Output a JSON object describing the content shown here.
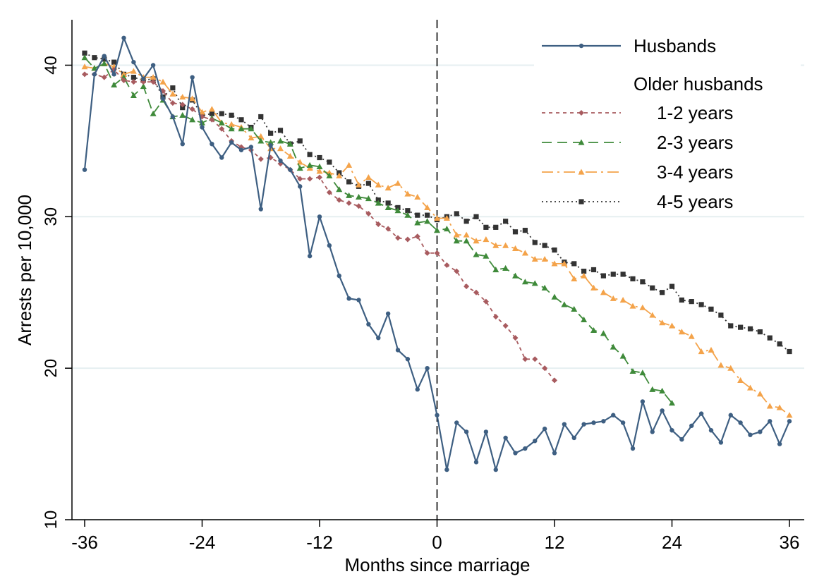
{
  "chart_data": {
    "type": "line",
    "xlabel": "Months since marriage",
    "ylabel": "Arrests per 10,000",
    "xlim": [
      -36,
      36
    ],
    "ylim": [
      10,
      43
    ],
    "xticks": [
      -36,
      -24,
      -12,
      0,
      12,
      24,
      36
    ],
    "yticks": [
      10,
      20,
      30,
      40
    ],
    "xtick_labels": [
      "-36",
      "-24",
      "-12",
      "0",
      "12",
      "24",
      "36"
    ],
    "ytick_labels": [
      "10",
      "20",
      "30",
      "40"
    ],
    "reference_line_x": 0,
    "grid": "horizontal",
    "legend": {
      "position": "top-right",
      "group_title": "Older husbands"
    },
    "series": [
      {
        "name": "Husbands",
        "legend_label": "Husbands",
        "color": "#3e5f82",
        "marker": "circle",
        "dash": "solid",
        "x": [
          -36,
          -35,
          -34,
          -33,
          -32,
          -31,
          -30,
          -29,
          -28,
          -27,
          -26,
          -25,
          -24,
          -23,
          -22,
          -21,
          -20,
          -19,
          -18,
          -17,
          -16,
          -15,
          -14,
          -13,
          -12,
          -11,
          -10,
          -9,
          -8,
          -7,
          -6,
          -5,
          -4,
          -3,
          -2,
          -1,
          0,
          1,
          2,
          3,
          4,
          5,
          6,
          7,
          8,
          9,
          10,
          11,
          12,
          13,
          14,
          15,
          16,
          17,
          18,
          19,
          20,
          21,
          22,
          23,
          24,
          25,
          26,
          27,
          28,
          29,
          30,
          31,
          32,
          33,
          34,
          35,
          36
        ],
        "values": [
          33.1,
          39.4,
          40.6,
          39.4,
          41.8,
          40.2,
          39.1,
          40.0,
          37.8,
          36.6,
          34.8,
          39.2,
          35.9,
          34.8,
          33.9,
          34.9,
          34.4,
          34.6,
          30.5,
          34.7,
          33.7,
          33.1,
          32.0,
          27.4,
          30.0,
          28.1,
          26.1,
          24.6,
          24.5,
          22.9,
          22.0,
          23.6,
          21.2,
          20.6,
          18.6,
          20.0,
          16.9,
          13.3,
          16.4,
          15.8,
          13.8,
          15.8,
          13.3,
          15.4,
          14.4,
          14.7,
          15.2,
          16.0,
          14.4,
          16.3,
          15.4,
          16.3,
          16.4,
          16.5,
          16.9,
          16.4,
          14.7,
          17.8,
          15.8,
          17.2,
          15.9,
          15.3,
          16.2,
          17.0,
          15.9,
          15.1,
          16.9,
          16.4,
          15.6,
          15.8,
          16.5,
          15.0,
          16.5
        ]
      },
      {
        "name": "1-2 years",
        "legend_label": "1-2 years",
        "color": "#a85b5f",
        "marker": "diamond",
        "dash": "short",
        "x": [
          -36,
          -35,
          -34,
          -33,
          -32,
          -31,
          -30,
          -29,
          -28,
          -27,
          -26,
          -25,
          -24,
          -23,
          -22,
          -21,
          -20,
          -19,
          -18,
          -17,
          -16,
          -15,
          -14,
          -13,
          -12,
          -11,
          -10,
          -9,
          -8,
          -7,
          -6,
          -5,
          -4,
          -3,
          -2,
          -1,
          0,
          1,
          2,
          3,
          4,
          5,
          6,
          7,
          8,
          9,
          10,
          11,
          12
        ],
        "values": [
          39.4,
          39.4,
          39.2,
          39.7,
          39.0,
          38.9,
          38.9,
          38.9,
          38.3,
          37.5,
          37.4,
          37.1,
          36.6,
          36.4,
          35.8,
          35.0,
          34.6,
          34.4,
          33.8,
          33.9,
          33.5,
          33.1,
          32.5,
          32.5,
          32.6,
          31.6,
          31.1,
          30.9,
          30.7,
          30.2,
          29.5,
          29.2,
          28.6,
          28.5,
          28.7,
          27.6,
          27.6,
          26.8,
          26.4,
          25.4,
          25.0,
          24.4,
          23.4,
          22.8,
          22.0,
          20.6,
          20.6,
          20.0,
          19.2
        ]
      },
      {
        "name": "2-3 years",
        "legend_label": "2-3 years",
        "color": "#3f8a3a",
        "marker": "triangle",
        "dash": "long",
        "x": [
          -36,
          -35,
          -34,
          -33,
          -32,
          -31,
          -30,
          -29,
          -28,
          -27,
          -26,
          -25,
          -24,
          -23,
          -22,
          -21,
          -20,
          -19,
          -18,
          -17,
          -16,
          -15,
          -14,
          -13,
          -12,
          -11,
          -10,
          -9,
          -8,
          -7,
          -6,
          -5,
          -4,
          -3,
          -2,
          -1,
          0,
          1,
          2,
          3,
          4,
          5,
          6,
          7,
          8,
          9,
          10,
          11,
          12,
          13,
          14,
          15,
          16,
          17,
          18,
          19,
          20,
          21,
          22,
          23,
          24
        ],
        "values": [
          40.5,
          39.8,
          40.1,
          38.7,
          39.2,
          38.0,
          38.6,
          36.8,
          37.7,
          36.6,
          36.7,
          36.4,
          36.2,
          36.5,
          36.2,
          35.8,
          35.8,
          35.8,
          35.0,
          34.9,
          35.0,
          34.8,
          33.2,
          33.4,
          33.3,
          32.7,
          31.8,
          31.4,
          31.3,
          31.2,
          30.9,
          30.6,
          30.4,
          30.1,
          29.6,
          29.7,
          29.1,
          29.2,
          28.4,
          28.4,
          27.5,
          27.4,
          26.5,
          26.6,
          26.1,
          25.7,
          25.6,
          25.3,
          24.7,
          24.2,
          23.9,
          23.2,
          22.5,
          22.3,
          21.4,
          20.8,
          19.8,
          19.7,
          18.6,
          18.5,
          17.7
        ]
      },
      {
        "name": "3-4 years",
        "legend_label": "3-4 years",
        "color": "#f4a34a",
        "marker": "triangle",
        "dash": "longdashdot",
        "x": [
          -36,
          -35,
          -34,
          -33,
          -32,
          -31,
          -30,
          -29,
          -28,
          -27,
          -26,
          -25,
          -24,
          -23,
          -22,
          -21,
          -20,
          -19,
          -18,
          -17,
          -16,
          -15,
          -14,
          -13,
          -12,
          -11,
          -10,
          -9,
          -8,
          -7,
          -6,
          -5,
          -4,
          -3,
          -2,
          -1,
          0,
          1,
          2,
          3,
          4,
          5,
          6,
          7,
          8,
          9,
          10,
          11,
          12,
          13,
          14,
          15,
          16,
          17,
          18,
          19,
          20,
          21,
          22,
          23,
          24,
          25,
          26,
          27,
          28,
          29,
          30,
          31,
          32,
          33,
          34,
          35,
          36
        ],
        "values": [
          39.9,
          39.8,
          40.1,
          39.9,
          39.4,
          39.6,
          39.2,
          39.2,
          38.9,
          38.1,
          37.9,
          37.8,
          36.9,
          37.1,
          36.2,
          36.1,
          35.9,
          35.2,
          35.3,
          34.5,
          34.5,
          34.0,
          33.6,
          33.2,
          33.0,
          32.9,
          32.7,
          33.4,
          32.1,
          32.6,
          32.1,
          31.9,
          32.2,
          31.5,
          31.3,
          30.6,
          29.9,
          29.9,
          28.8,
          28.8,
          28.4,
          28.5,
          28.1,
          28.1,
          27.9,
          27.6,
          27.2,
          27.2,
          26.9,
          26.9,
          25.9,
          26.1,
          25.3,
          25.0,
          24.6,
          24.5,
          24.1,
          24.0,
          23.5,
          23.0,
          22.8,
          22.4,
          22.1,
          21.1,
          21.2,
          20.2,
          20.0,
          19.2,
          18.7,
          18.3,
          17.5,
          17.4,
          16.9
        ]
      },
      {
        "name": "4-5 years",
        "legend_label": "4-5 years",
        "color": "#333333",
        "marker": "square",
        "dash": "dot",
        "x": [
          -36,
          -35,
          -34,
          -33,
          -32,
          -31,
          -30,
          -29,
          -28,
          -27,
          -26,
          -25,
          -24,
          -23,
          -22,
          -21,
          -20,
          -19,
          -18,
          -17,
          -16,
          -15,
          -14,
          -13,
          -12,
          -11,
          -10,
          -9,
          -8,
          -7,
          -6,
          -5,
          -4,
          -3,
          -2,
          -1,
          0,
          1,
          2,
          3,
          4,
          5,
          6,
          7,
          8,
          9,
          10,
          11,
          12,
          13,
          14,
          15,
          16,
          17,
          18,
          19,
          20,
          21,
          22,
          23,
          24,
          25,
          26,
          27,
          28,
          29,
          30,
          31,
          32,
          33,
          34,
          35,
          36
        ],
        "values": [
          40.8,
          40.5,
          40.4,
          40.2,
          39.4,
          39.2,
          39.0,
          39.1,
          37.9,
          38.5,
          37.2,
          37.7,
          36.7,
          36.8,
          36.8,
          36.7,
          36.4,
          35.9,
          36.6,
          35.5,
          35.7,
          34.8,
          35.0,
          34.1,
          33.9,
          33.6,
          32.9,
          32.3,
          32.0,
          32.2,
          31.1,
          30.9,
          30.6,
          30.4,
          30.1,
          30.1,
          29.8,
          30.0,
          30.2,
          29.7,
          30.0,
          29.3,
          29.3,
          29.7,
          29.0,
          29.1,
          28.3,
          28.1,
          27.8,
          27.0,
          26.9,
          26.4,
          26.5,
          26.1,
          26.2,
          26.2,
          25.9,
          25.7,
          25.3,
          25.0,
          25.4,
          24.5,
          24.4,
          24.2,
          23.9,
          23.5,
          22.8,
          22.7,
          22.6,
          22.4,
          22.0,
          21.6,
          21.1
        ]
      }
    ]
  }
}
